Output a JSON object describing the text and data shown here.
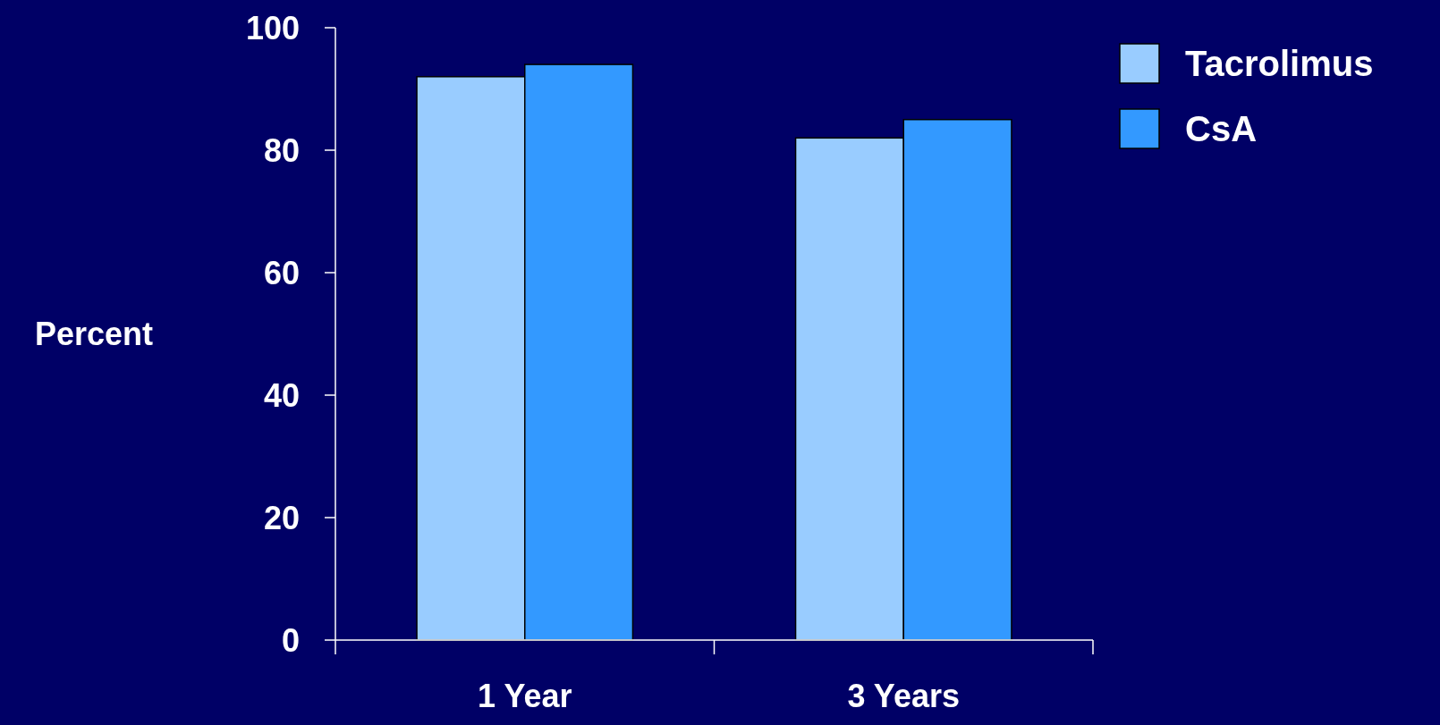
{
  "chart_data": {
    "type": "bar",
    "ylabel": "Percent",
    "categories": [
      "1 Year",
      "3 Years"
    ],
    "series": [
      {
        "name": "Tacrolimus",
        "color": "#99ccff",
        "values": [
          92,
          82
        ]
      },
      {
        "name": "CsA",
        "color": "#3399ff",
        "values": [
          94,
          85
        ]
      }
    ],
    "ylim": [
      0,
      100
    ],
    "yticks": [
      0,
      20,
      40,
      60,
      80,
      100
    ],
    "grid": false,
    "legend": "top right"
  }
}
